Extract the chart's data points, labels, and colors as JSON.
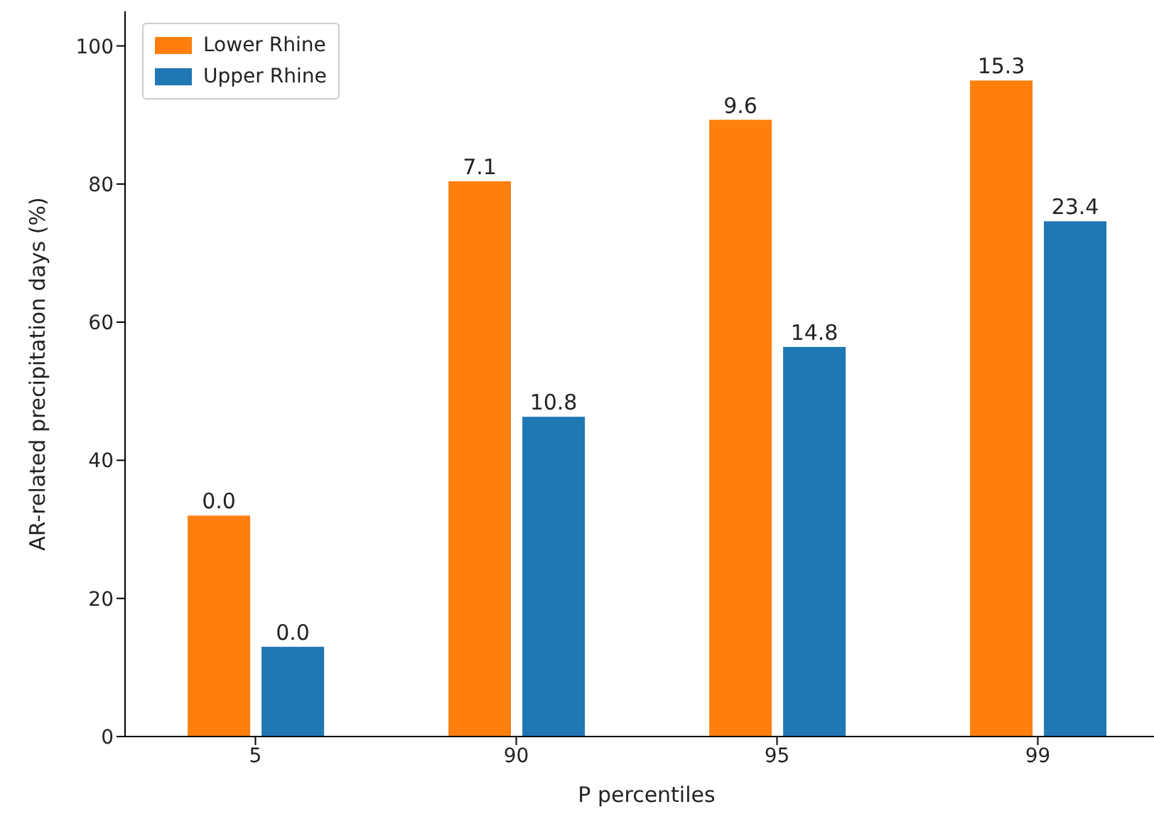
{
  "chart_data": {
    "type": "bar",
    "xlabel": "P percentiles",
    "ylabel": "AR-related precipitation days (%)",
    "categories": [
      "5",
      "90",
      "95",
      "99"
    ],
    "series": [
      {
        "name": "Lower Rhine",
        "color": "#ff7f0e",
        "values": [
          32.0,
          80.4,
          89.3,
          95.0
        ]
      },
      {
        "name": "Upper Rhine",
        "color": "#1f77b4",
        "values": [
          13.0,
          46.3,
          56.4,
          74.6
        ]
      }
    ],
    "annotations": [
      {
        "text": "0.0",
        "x": "5",
        "y": 32.0
      },
      {
        "text": "7.1",
        "x": "90",
        "y": 80.4
      },
      {
        "text": "9.6",
        "x": "95",
        "y": 89.3
      },
      {
        "text": "15.3",
        "x": "99",
        "y": 95.0
      },
      {
        "text": "0.0",
        "x": "5",
        "y": 13.0
      },
      {
        "text": "10.8",
        "x": "90",
        "y": 46.3
      },
      {
        "text": "14.8",
        "x": "95",
        "y": 56.4
      },
      {
        "text": "23.4",
        "x": "99",
        "y": 74.6
      }
    ],
    "ylim": [
      0,
      105
    ],
    "yticks": [
      0,
      20,
      40,
      60,
      80,
      100
    ],
    "grid": false,
    "legend": "top left"
  }
}
